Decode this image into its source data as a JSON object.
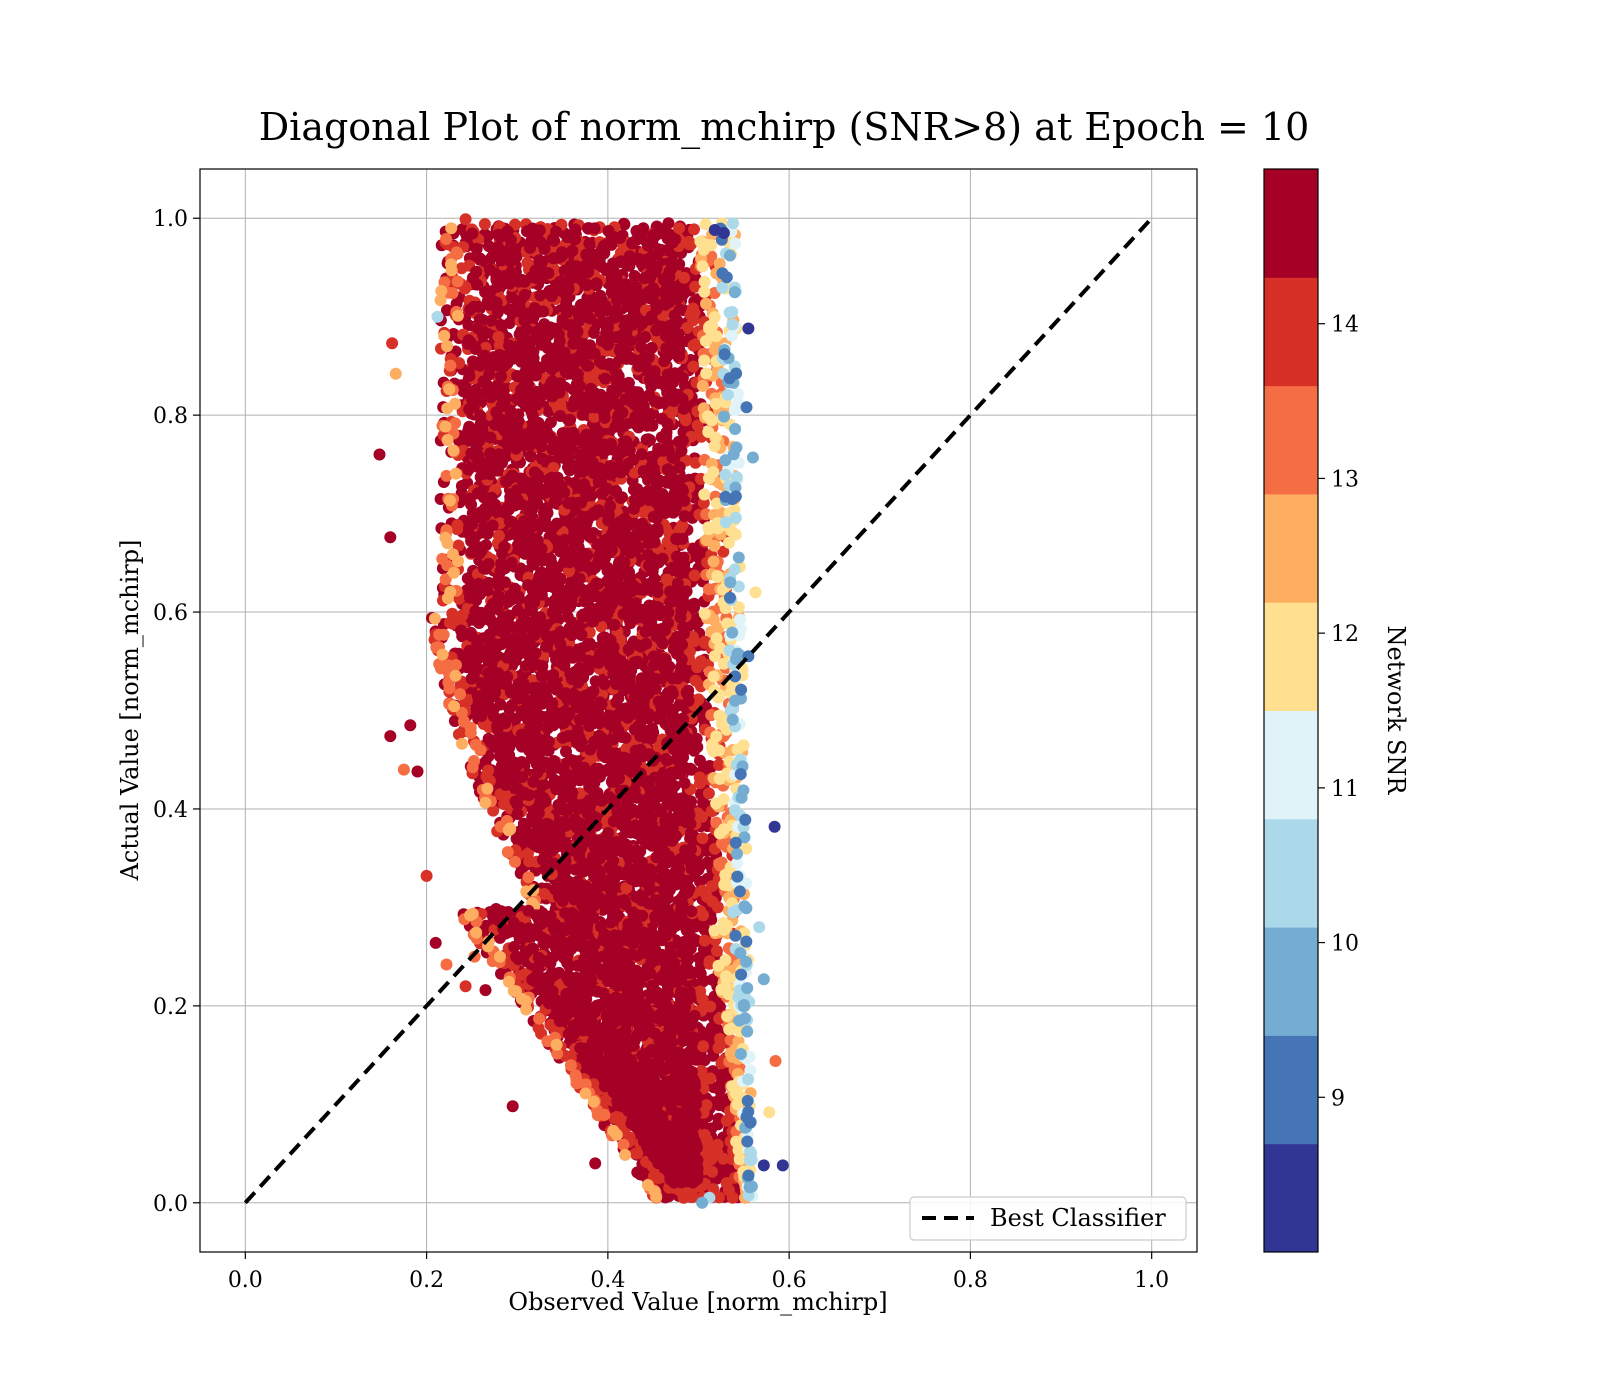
{
  "chart_data": {
    "type": "scatter",
    "title": "Diagonal Plot of norm_mchirp (SNR>8) at Epoch = 10",
    "xlabel": "Observed Value [norm_mchirp]",
    "ylabel": "Actual Value [norm_mchirp]",
    "xlim": [
      -0.05,
      1.05
    ],
    "ylim": [
      -0.05,
      1.05
    ],
    "xticks": [
      "0.0",
      "0.2",
      "0.4",
      "0.6",
      "0.8",
      "1.0"
    ],
    "yticks": [
      "0.0",
      "0.2",
      "0.4",
      "0.6",
      "0.8",
      "1.0"
    ],
    "grid": true,
    "legend": {
      "placement": "lower-right",
      "entries": [
        {
          "label": "Best Classifier",
          "style": "dashed",
          "color": "#000000"
        }
      ]
    },
    "reference_line": {
      "x": [
        0.0,
        1.0
      ],
      "y": [
        0.0,
        1.0
      ]
    },
    "colorbar": {
      "label": "Network SNR",
      "min": 8.0,
      "max": 15.0,
      "tick_values": [
        9,
        10,
        11,
        12,
        13,
        14
      ],
      "ticks": [
        "9",
        "10",
        "11",
        "12",
        "13",
        "14"
      ],
      "colors": [
        "#313695",
        "#4575b4",
        "#74add1",
        "#abd9e9",
        "#e0f3f8",
        "#fee090",
        "#fdae61",
        "#f46d43",
        "#d73027",
        "#a50026"
      ]
    },
    "series": [
      {
        "points": [
          [
            0.148,
            0.76,
            14.6
          ],
          [
            0.162,
            0.873,
            14.2
          ],
          [
            0.166,
            0.842,
            12.5
          ],
          [
            0.16,
            0.676,
            14.8
          ],
          [
            0.16,
            0.474,
            14.3
          ],
          [
            0.175,
            0.44,
            13.0
          ],
          [
            0.182,
            0.485,
            14.7
          ],
          [
            0.19,
            0.438,
            14.9
          ],
          [
            0.2,
            0.332,
            14.1
          ],
          [
            0.21,
            0.264,
            14.8
          ],
          [
            0.222,
            0.242,
            13.5
          ],
          [
            0.243,
            0.999,
            14.2
          ],
          [
            0.212,
            0.9,
            10.2
          ],
          [
            0.584,
            0.382,
            8.3
          ],
          [
            0.593,
            0.038,
            8.4
          ],
          [
            0.572,
            0.038,
            8.6
          ],
          [
            0.585,
            0.144,
            13.2
          ],
          [
            0.578,
            0.092,
            12.0
          ],
          [
            0.572,
            0.227,
            9.8
          ],
          [
            0.567,
            0.28,
            10.5
          ],
          [
            0.563,
            0.62,
            12.1
          ],
          [
            0.56,
            0.757,
            9.9
          ],
          [
            0.553,
            0.808,
            9.3
          ],
          [
            0.528,
            0.985,
            8.2
          ],
          [
            0.518,
            0.988,
            8.6
          ],
          [
            0.555,
            0.888,
            8.3
          ],
          [
            0.555,
            0.555,
            9.2
          ],
          [
            0.512,
            0.005,
            10.2
          ],
          [
            0.504,
            0.0,
            9.7
          ],
          [
            0.456,
            0.025,
            14.2
          ],
          [
            0.386,
            0.04,
            14.6
          ],
          [
            0.295,
            0.098,
            14.8
          ],
          [
            0.253,
            0.25,
            13.3
          ],
          [
            0.265,
            0.216,
            14.4
          ],
          [
            0.243,
            0.22,
            14.1
          ],
          [
            0.248,
            0.292,
            12.8
          ]
        ]
      }
    ]
  }
}
